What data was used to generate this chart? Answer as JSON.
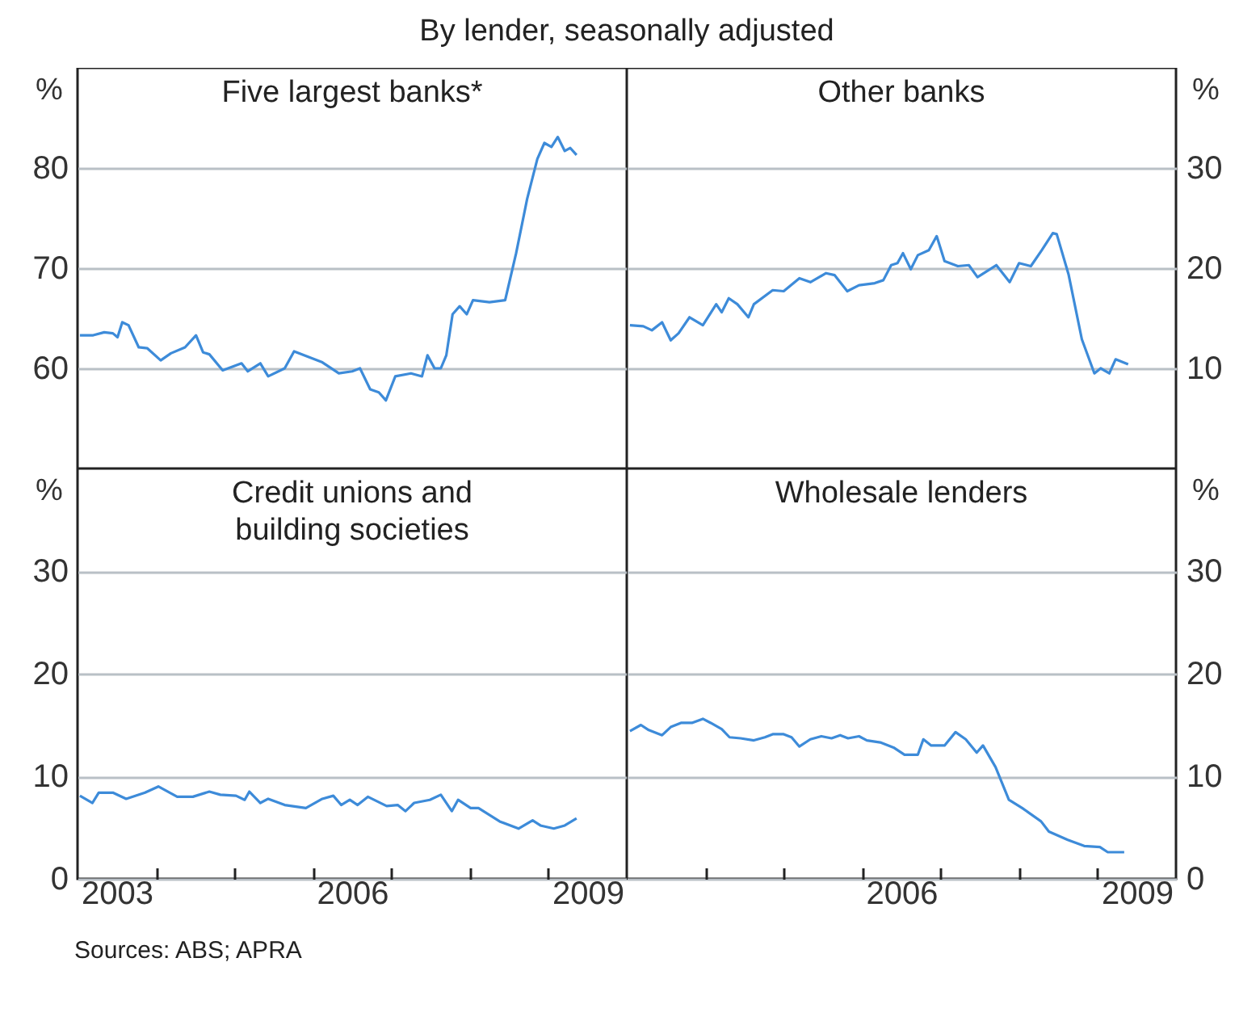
{
  "chart_data": [
    {
      "type": "line",
      "subtitle": "By lender, seasonally adjusted",
      "title": "Five largest banks*",
      "ylabel": "%",
      "xlim": [
        2003,
        2010
      ],
      "ylim": [
        50,
        90
      ],
      "yticks": [
        60,
        70,
        80
      ],
      "grid": "y",
      "tick_labels": "y",
      "x": [
        2003.03,
        2003.2,
        2003.34,
        2003.45,
        2003.51,
        2003.57,
        2003.65,
        2003.78,
        2003.89,
        2004.06,
        2004.19,
        2004.37,
        2004.51,
        2004.6,
        2004.68,
        2004.85,
        2005.09,
        2005.17,
        2005.33,
        2005.43,
        2005.64,
        2005.76,
        2006.12,
        2006.33,
        2006.5,
        2006.6,
        2006.73,
        2006.84,
        2006.93,
        2007.05,
        2007.25,
        2007.39,
        2007.46,
        2007.55,
        2007.63,
        2007.7,
        2007.78,
        2007.87,
        2007.96,
        2008.04,
        2008.25,
        2008.45,
        2008.59,
        2008.73,
        2008.86,
        2008.95,
        2009.04,
        2009.12,
        2009.21,
        2009.28,
        2009.36
      ],
      "series": [
        {
          "color": "#3d8bd9",
          "values": [
            63.3,
            63.3,
            63.6,
            63.5,
            63.1,
            64.6,
            64.3,
            62.1,
            62.0,
            60.8,
            61.5,
            62.1,
            63.3,
            61.6,
            61.4,
            59.8,
            60.5,
            59.7,
            60.5,
            59.2,
            60.0,
            61.7,
            60.6,
            59.5,
            59.7,
            60.0,
            57.9,
            57.6,
            56.8,
            59.2,
            59.5,
            59.2,
            61.3,
            60.0,
            60.0,
            61.3,
            65.4,
            66.2,
            65.4,
            66.8,
            66.6,
            66.8,
            71.5,
            76.9,
            80.9,
            82.5,
            82.1,
            83.1,
            81.7,
            82.0,
            81.3
          ]
        }
      ]
    },
    {
      "type": "line",
      "title": "Other banks",
      "y2label": "%",
      "xlim": [
        2003,
        2010
      ],
      "y2lim": [
        0,
        40
      ],
      "y2ticks": [
        10,
        20,
        30
      ],
      "grid": "y",
      "tick_labels": "y",
      "x": [
        2003.04,
        2003.21,
        2003.32,
        2003.45,
        2003.56,
        2003.66,
        2003.8,
        2003.97,
        2004.14,
        2004.21,
        2004.3,
        2004.41,
        2004.55,
        2004.62,
        2004.86,
        2005.0,
        2005.2,
        2005.34,
        2005.54,
        2005.65,
        2005.81,
        2005.96,
        2006.16,
        2006.27,
        2006.37,
        2006.45,
        2006.52,
        2006.62,
        2006.71,
        2006.85,
        2006.95,
        2007.05,
        2007.22,
        2007.36,
        2007.47,
        2007.71,
        2007.88,
        2008.0,
        2008.15,
        2008.29,
        2008.43,
        2008.48,
        2008.63,
        2008.8,
        2008.96,
        2009.04,
        2009.15,
        2009.23,
        2009.39
      ],
      "series": [
        {
          "color": "#3d8bd9",
          "axis": "y2",
          "values": [
            14.3,
            14.2,
            13.8,
            14.6,
            12.8,
            13.5,
            15.1,
            14.3,
            16.4,
            15.6,
            17.0,
            16.4,
            15.1,
            16.4,
            17.8,
            17.7,
            19.0,
            18.6,
            19.5,
            19.3,
            17.7,
            18.3,
            18.5,
            18.8,
            20.3,
            20.5,
            21.5,
            19.9,
            21.3,
            21.8,
            23.2,
            20.7,
            20.2,
            20.3,
            19.1,
            20.3,
            18.6,
            20.5,
            20.2,
            21.8,
            23.5,
            23.4,
            19.4,
            12.9,
            9.5,
            10.0,
            9.5,
            10.9,
            10.4
          ]
        }
      ]
    },
    {
      "type": "line",
      "title": "Credit unions and\nbuilding societies",
      "ylabel": "%",
      "xlim": [
        2003,
        2010
      ],
      "ylim": [
        0,
        40
      ],
      "yticks": [
        0,
        10,
        20,
        30
      ],
      "grid": "y",
      "xticks": [
        {
          "value": 2004,
          "label": null
        },
        {
          "value": 2005,
          "label": null
        },
        {
          "value": 2006,
          "label": null
        },
        {
          "value": 2007,
          "label": null
        },
        {
          "value": 2008,
          "label": null
        },
        {
          "value": 2009,
          "label": null
        },
        {
          "value": 2003.5,
          "label": "2003"
        },
        {
          "value": 2006.5,
          "label": "2006"
        },
        {
          "value": 2009.5,
          "label": "2009"
        }
      ],
      "annotations": [
        "Sources: ABS; APRA"
      ],
      "x": [
        2003.03,
        2003.19,
        2003.27,
        2003.45,
        2003.62,
        2003.86,
        2004.03,
        2004.27,
        2004.47,
        2004.68,
        2004.82,
        2005.02,
        2005.13,
        2005.19,
        2005.33,
        2005.43,
        2005.64,
        2005.91,
        2006.12,
        2006.26,
        2006.36,
        2006.47,
        2006.57,
        2006.7,
        2006.94,
        2007.08,
        2007.18,
        2007.29,
        2007.49,
        2007.63,
        2007.77,
        2007.85,
        2008.01,
        2008.11,
        2008.38,
        2008.62,
        2008.8,
        2008.9,
        2009.07,
        2009.21,
        2009.36
      ],
      "series": [
        {
          "color": "#3d8bd9",
          "values": [
            8.1,
            7.4,
            8.4,
            8.4,
            7.8,
            8.4,
            9.0,
            8.0,
            8.0,
            8.5,
            8.2,
            8.1,
            7.7,
            8.5,
            7.4,
            7.8,
            7.2,
            6.9,
            7.8,
            8.1,
            7.2,
            7.7,
            7.2,
            8.0,
            7.1,
            7.2,
            6.6,
            7.4,
            7.7,
            8.2,
            6.6,
            7.7,
            6.9,
            6.9,
            5.6,
            4.9,
            5.7,
            5.2,
            4.9,
            5.2,
            5.9
          ]
        }
      ]
    },
    {
      "type": "line",
      "title": "Wholesale lenders",
      "y2label": "%",
      "xlim": [
        2003,
        2010
      ],
      "y2lim": [
        0,
        40
      ],
      "y2ticks": [
        0,
        10,
        20,
        30
      ],
      "grid": "y",
      "xticks": [
        {
          "value": 2004,
          "label": null
        },
        {
          "value": 2005,
          "label": null
        },
        {
          "value": 2006,
          "label": null
        },
        {
          "value": 2007,
          "label": null
        },
        {
          "value": 2008,
          "label": null
        },
        {
          "value": 2009,
          "label": null
        },
        {
          "value": 2006.5,
          "label": "2006"
        },
        {
          "value": 2009.5,
          "label": "2009"
        }
      ],
      "x": [
        2003.04,
        2003.18,
        2003.28,
        2003.45,
        2003.56,
        2003.69,
        2003.83,
        2003.97,
        2004.07,
        2004.21,
        2004.31,
        2004.45,
        2004.62,
        2004.76,
        2004.86,
        2005.0,
        2005.1,
        2005.2,
        2005.34,
        2005.48,
        2005.61,
        2005.72,
        2005.82,
        2005.96,
        2006.06,
        2006.23,
        2006.4,
        2006.54,
        2006.71,
        2006.78,
        2006.88,
        2007.05,
        2007.19,
        2007.32,
        2007.46,
        2007.54,
        2007.7,
        2007.87,
        2008.04,
        2008.28,
        2008.38,
        2008.62,
        2008.83,
        2009.03,
        2009.13,
        2009.34
      ],
      "series": [
        {
          "color": "#3d8bd9",
          "axis": "y2",
          "values": [
            14.4,
            15.0,
            14.5,
            14.0,
            14.8,
            15.2,
            15.2,
            15.6,
            15.2,
            14.6,
            13.8,
            13.7,
            13.5,
            13.8,
            14.1,
            14.1,
            13.8,
            12.9,
            13.6,
            13.9,
            13.7,
            14.0,
            13.7,
            13.9,
            13.5,
            13.3,
            12.8,
            12.1,
            12.1,
            13.6,
            13.0,
            13.0,
            14.3,
            13.6,
            12.3,
            13.0,
            10.9,
            7.7,
            6.9,
            5.6,
            4.6,
            3.8,
            3.2,
            3.1,
            2.6,
            2.6
          ]
        }
      ]
    }
  ]
}
